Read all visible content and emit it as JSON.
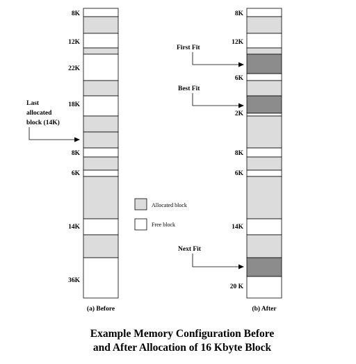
{
  "title_line1": "Example Memory Configuration Before",
  "title_line2": "and After Allocation of 16 Kbyte Block",
  "legend": {
    "allocated": "Allocated block",
    "free": "Free block"
  },
  "colors": {
    "allocated": "#dcdcdc",
    "free": "#ffffff",
    "new_allocation": "#8c8c8c",
    "outline": "#000000"
  },
  "before": {
    "caption": "(a) Before",
    "block_labels": [
      "8K",
      "12K",
      "22K",
      "18K",
      "8K",
      "6K",
      "14K",
      "36K"
    ],
    "annotation_lines": [
      "Last",
      "allocated",
      "block (14K)"
    ]
  },
  "after": {
    "caption": "(b) After",
    "block_labels": [
      "8K",
      "12K",
      "6K",
      "2K",
      "8K",
      "6K",
      "14K",
      "20 K"
    ],
    "pointers": [
      "First Fit",
      "Best Fit",
      "Next Fit"
    ]
  }
}
